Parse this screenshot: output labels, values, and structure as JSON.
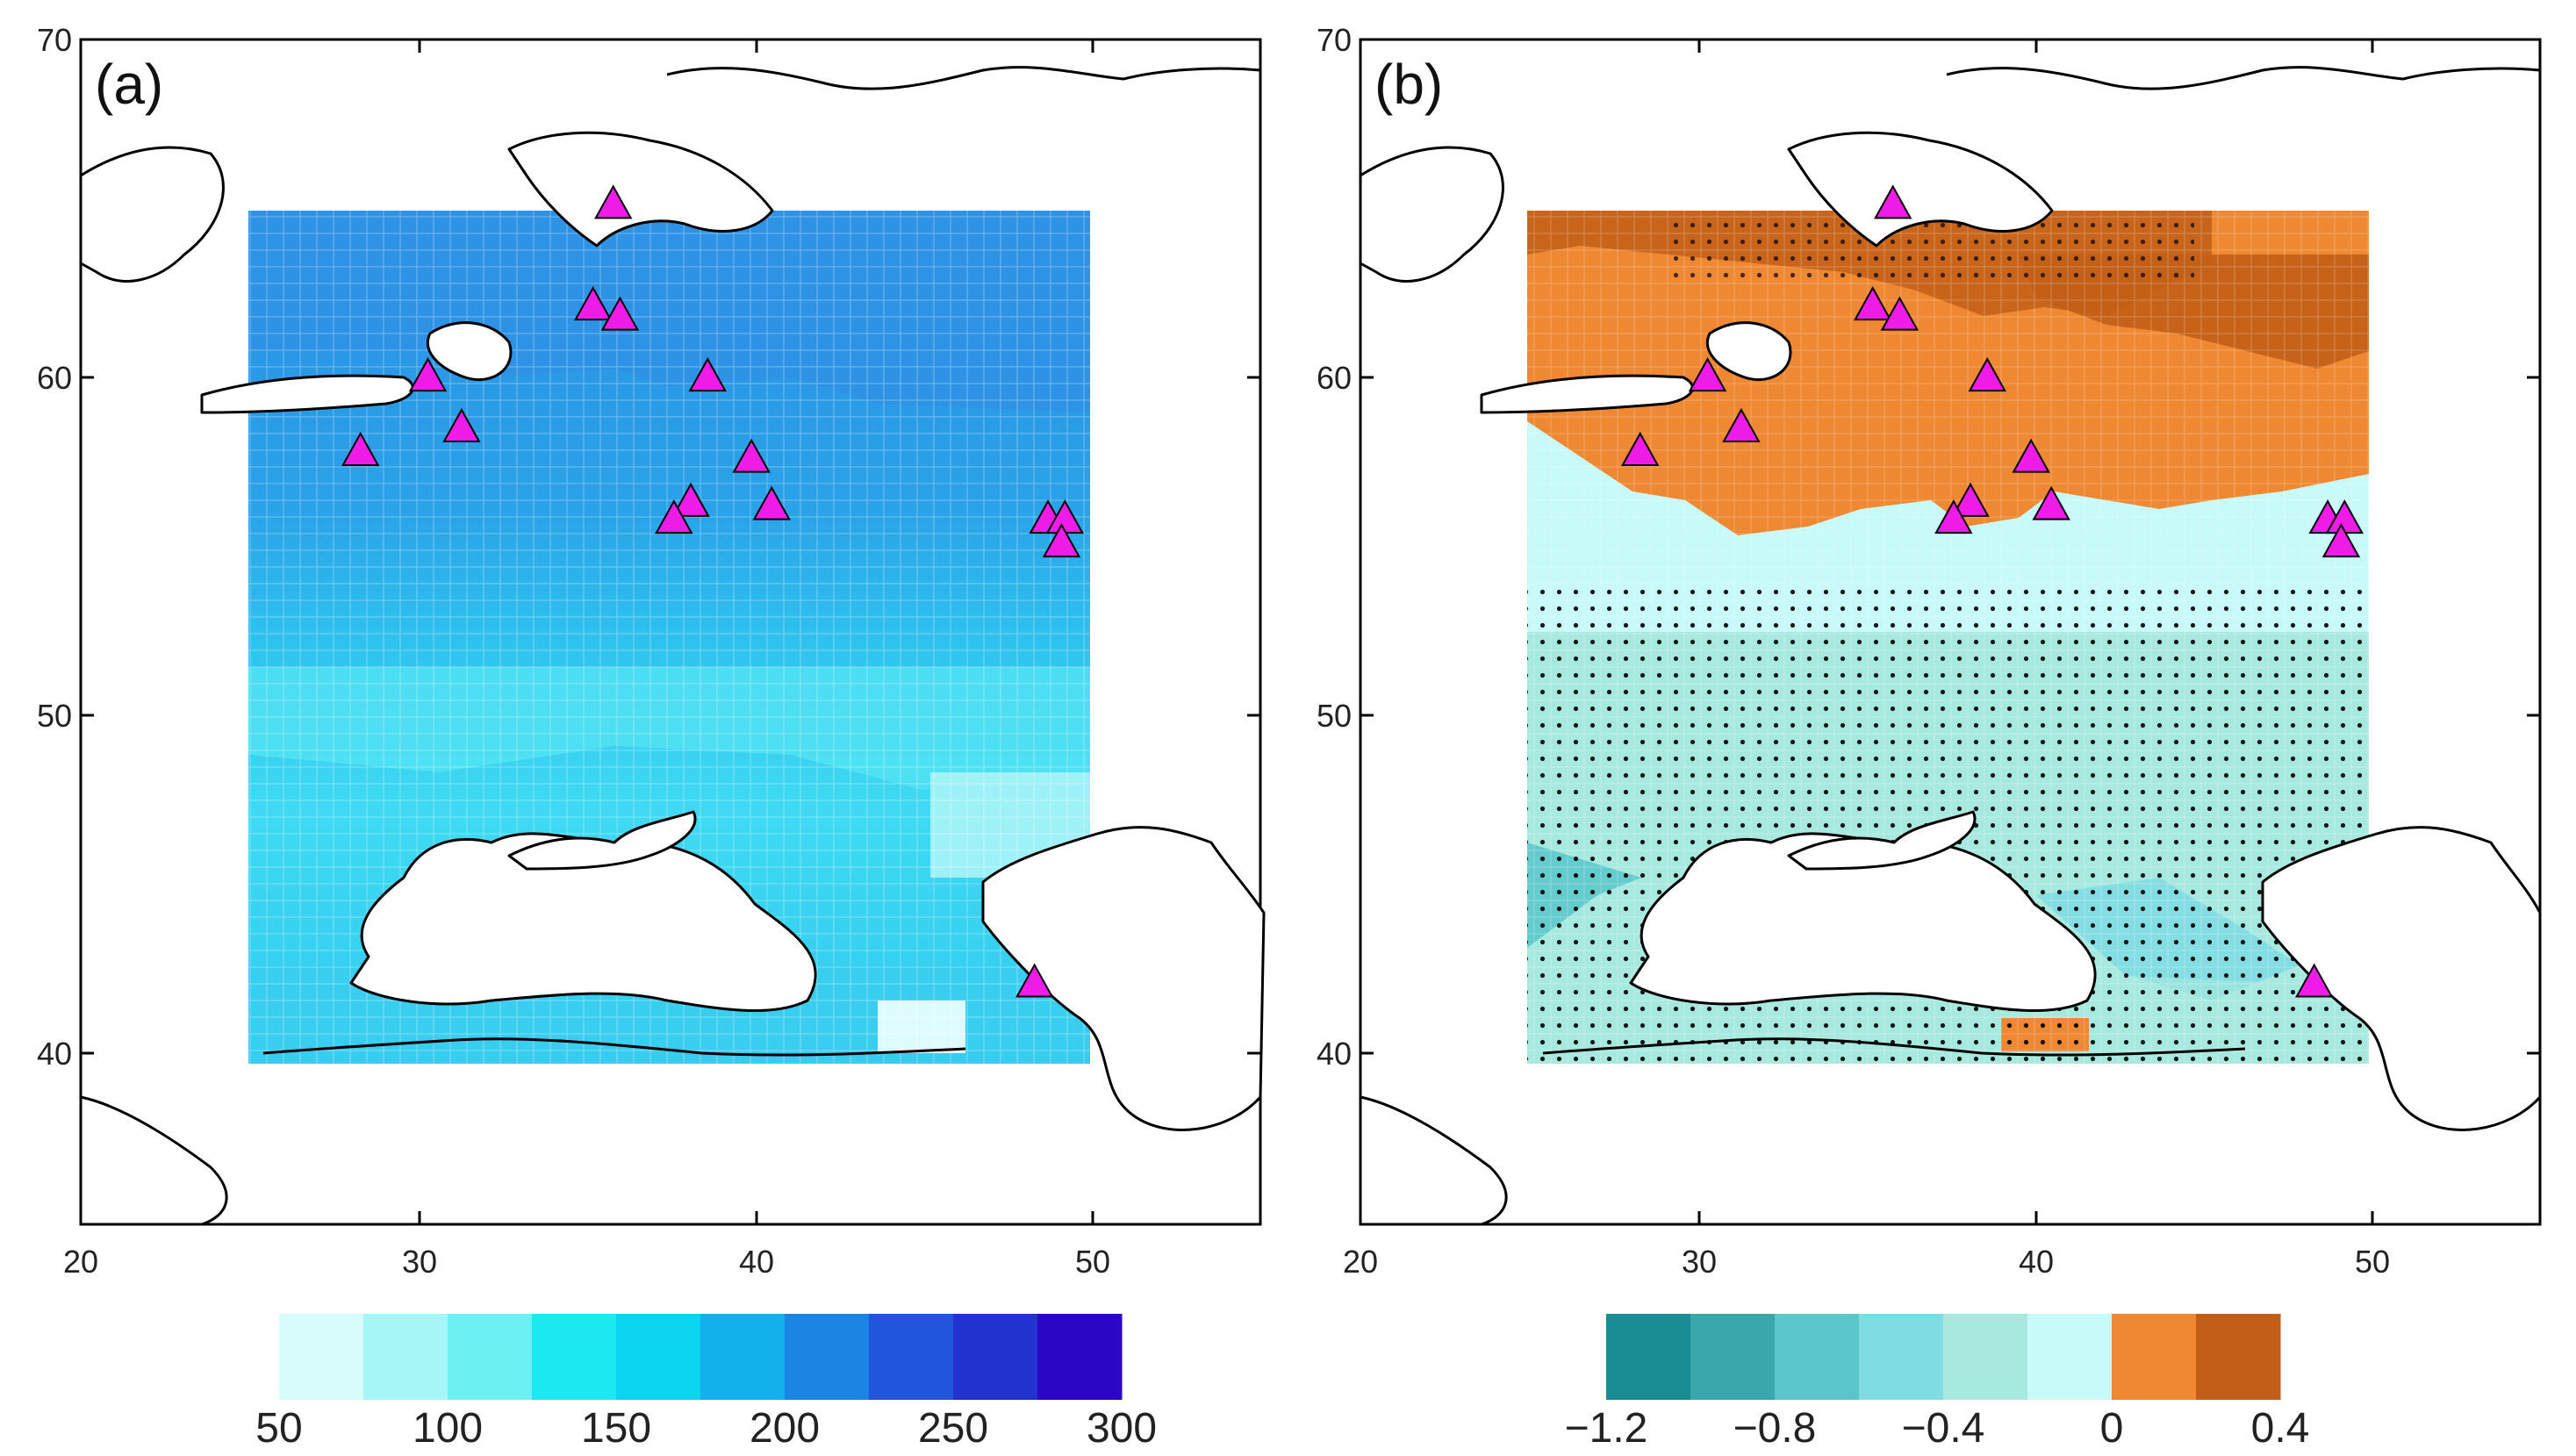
{
  "figure": {
    "panels": [
      {
        "id": "a",
        "label": "(a)",
        "lon_range": [
          20,
          55
        ],
        "lat_range": [
          35,
          70
        ],
        "x_ticks": [
          "20",
          "30",
          "40",
          "50"
        ],
        "y_ticks": [
          "70",
          "60",
          "50",
          "40"
        ],
        "field_extent": {
          "lon": [
            25,
            50
          ],
          "lat": [
            40,
            65
          ]
        },
        "colorbar": {
          "colors": [
            "#d8fbfb",
            "#a6f6f7",
            "#6cf0f4",
            "#1ce8f1",
            "#0ad4ef",
            "#12b0ec",
            "#1a85e2",
            "#2155dc",
            "#2233cf",
            "#2c06c6"
          ],
          "labels": [
            "50",
            "100",
            "150",
            "200",
            "250",
            "300"
          ]
        }
      },
      {
        "id": "b",
        "label": "(b)",
        "lon_range": [
          20,
          55
        ],
        "lat_range": [
          35,
          70
        ],
        "x_ticks": [
          "20",
          "30",
          "40",
          "50"
        ],
        "y_ticks": [
          "70",
          "60",
          "50",
          "40"
        ],
        "field_extent": {
          "lon": [
            25,
            50
          ],
          "lat": [
            40,
            65
          ]
        },
        "colorbar": {
          "colors": [
            "#1a8c96",
            "#3aa7ad",
            "#5ac6ca",
            "#7fdce2",
            "#a8e9df",
            "#c8fafa",
            "#ef8833",
            "#c25e17"
          ],
          "labels": [
            "−1.2",
            "−0.8",
            "−0.4",
            "0",
            "0.4"
          ]
        }
      }
    ],
    "stations": [
      {
        "lon": 35.8,
        "lat": 65.1
      },
      {
        "lon": 35.2,
        "lat": 62.1
      },
      {
        "lon": 36.0,
        "lat": 61.8
      },
      {
        "lon": 30.3,
        "lat": 60.0
      },
      {
        "lon": 38.6,
        "lat": 60.0
      },
      {
        "lon": 31.3,
        "lat": 58.5
      },
      {
        "lon": 28.3,
        "lat": 57.8
      },
      {
        "lon": 39.9,
        "lat": 57.6
      },
      {
        "lon": 40.5,
        "lat": 56.2
      },
      {
        "lon": 38.1,
        "lat": 56.3
      },
      {
        "lon": 37.6,
        "lat": 55.8
      },
      {
        "lon": 48.7,
        "lat": 55.8
      },
      {
        "lon": 49.2,
        "lat": 55.8
      },
      {
        "lon": 49.1,
        "lat": 55.1
      },
      {
        "lon": 48.3,
        "lat": 42.1
      }
    ],
    "colors": {
      "station_fill": "#ee1ce6",
      "coast": "#000000",
      "field_a_north": "#2e9be5",
      "field_a_mid": "#34c3ee",
      "field_a_south": "#69eef4",
      "field_b_positive": "#ef8833",
      "field_b_positive_dark": "#c25e17",
      "field_b_zero": "#c8fafa",
      "field_b_negative": "#a8e9df",
      "field_b_negative_dark": "#5ac6ca"
    }
  }
}
